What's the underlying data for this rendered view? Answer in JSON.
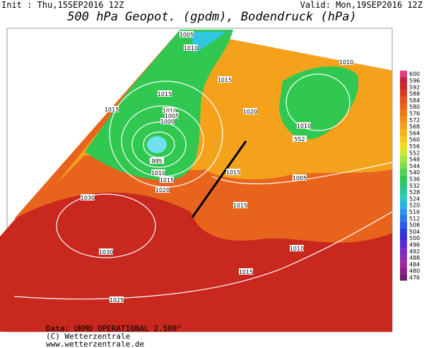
{
  "header": {
    "init": "Init : Thu,15SEP2016 12Z",
    "valid": "Valid: Mon,19SEP2016 12Z",
    "title": "500 hPa Geopot. (gpdm), Bodendruck (hPa)"
  },
  "scale": {
    "labels": [
      "600",
      "596",
      "592",
      "588",
      "584",
      "580",
      "576",
      "572",
      "568",
      "564",
      "560",
      "556",
      "552",
      "548",
      "544",
      "540",
      "536",
      "532",
      "528",
      "524",
      "520",
      "516",
      "512",
      "508",
      "504",
      "500",
      "496",
      "492",
      "488",
      "484",
      "480",
      "476"
    ]
  },
  "contour_labels": [
    "1005",
    "1010",
    "1015",
    "1015",
    "1015",
    "1010",
    "1005",
    "1000",
    "995",
    "1010",
    "1015",
    "1020",
    "1020",
    "1010",
    "1010",
    "552",
    "1015",
    "1005",
    "1015",
    "1010",
    "1015",
    "1030",
    "1030",
    "1025"
  ],
  "footer": {
    "source": "Data: UKMO OPERATIONAL 2.500°",
    "copyright": "(C) Wetterzentrale",
    "url": "www.wetterzentrale.de"
  }
}
